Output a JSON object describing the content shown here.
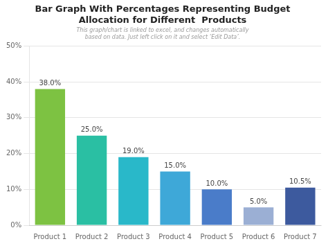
{
  "chart_data": {
    "type": "bar",
    "title": "Bar Graph With Percentages Representing Budget\nAllocation for Different  Products",
    "subtitle": "This graph/chart is linked to excel, and changes automatically based on data. Just left click on it and select ‘Edit Data’.",
    "categories": [
      "Product 1",
      "Product 2",
      "Product 3",
      "Product 4",
      "Product 5",
      "Product 6",
      "Product 7"
    ],
    "values": [
      38.0,
      25.0,
      19.0,
      15.0,
      10.0,
      5.0,
      10.5
    ],
    "value_labels": [
      "38.0%",
      "25.0%",
      "19.0%",
      "15.0%",
      "10.0%",
      "5.0%",
      "10.5%"
    ],
    "colors": [
      "#7DC242",
      "#2ABFA3",
      "#29B8C9",
      "#3EA8D8",
      "#4A7CC9",
      "#9BAFD4",
      "#3D5A9E"
    ],
    "ylim": [
      0,
      50
    ],
    "yticks": [
      {
        "value": 0,
        "label": "0%"
      },
      {
        "value": 10,
        "label": "10%"
      },
      {
        "value": 20,
        "label": "20%"
      },
      {
        "value": 30,
        "label": "30%"
      },
      {
        "value": 40,
        "label": "40%"
      },
      {
        "value": 50,
        "label": "50%"
      }
    ],
    "grid": true,
    "data_labels": true
  }
}
